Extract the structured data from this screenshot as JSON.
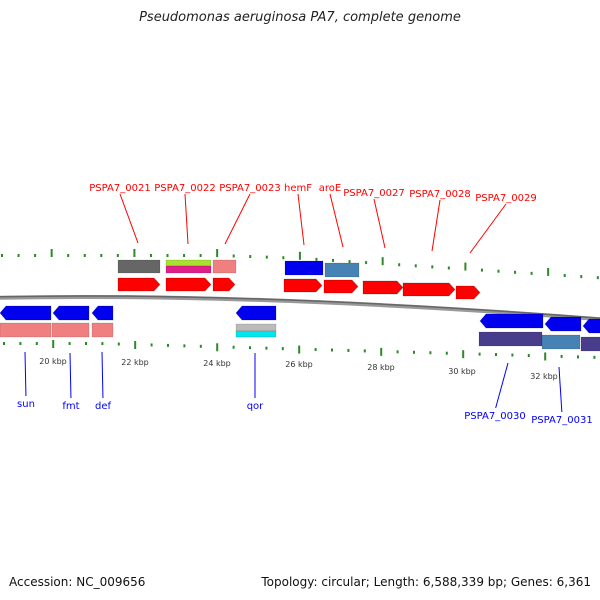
{
  "title": "Pseudomonas aeruginosa PA7, complete genome",
  "footer": {
    "accession": "Accession: NC_009656",
    "summary": "Topology: circular; Length: 6,588,339 bp; Genes: 6,361"
  },
  "forward_labels": [
    "PSPA7_0021",
    "PSPA7_0022",
    "PSPA7_0023",
    "hemF",
    "aroE",
    "PSPA7_0027",
    "PSPA7_0028",
    "PSPA7_0029"
  ],
  "reverse_labels": [
    "sun",
    "fmt",
    "def",
    "qor",
    "PSPA7_0030",
    "PSPA7_0031"
  ],
  "tick_labels": [
    "20 kbp",
    "22 kbp",
    "24 kbp",
    "26 kbp",
    "28 kbp",
    "30 kbp",
    "32 kbp"
  ],
  "colors": {
    "forward_label": "#ff0000",
    "reverse_label": "#0000ff",
    "tick": "#2a8a2a",
    "backbone": "#888888"
  }
}
